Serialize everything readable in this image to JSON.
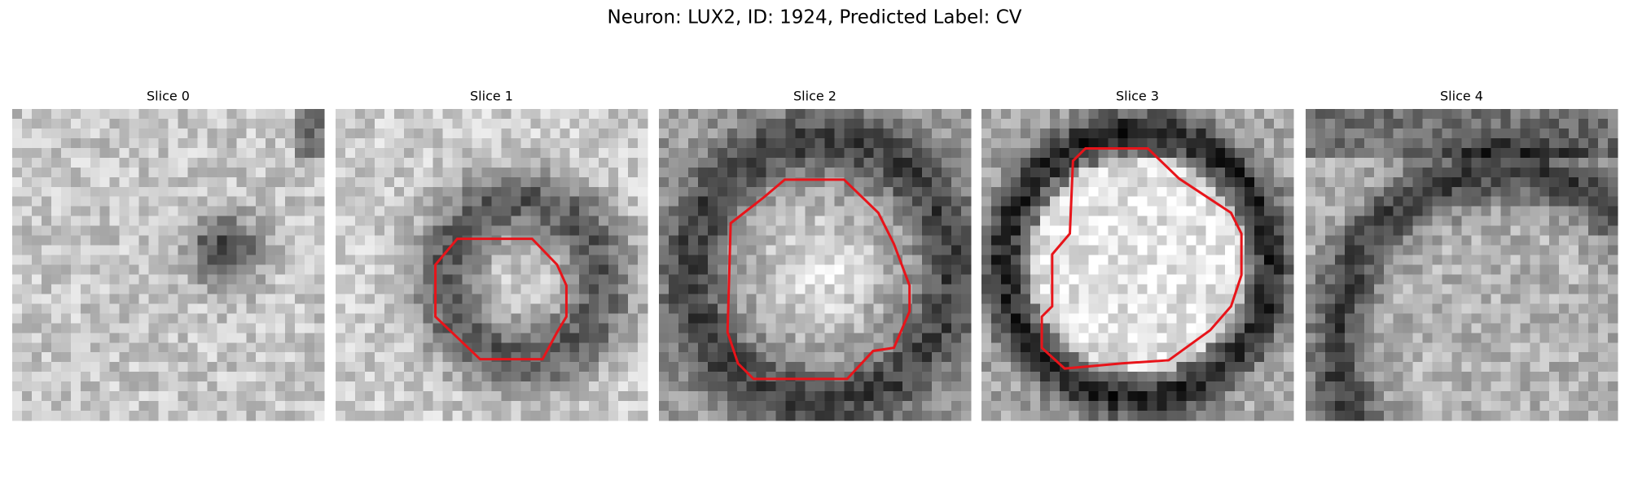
{
  "title": "Neuron: LUX2, ID: 1924, Predicted Label: CV",
  "panels": [
    {
      "title": "Slice 0"
    },
    {
      "title": "Slice 1"
    },
    {
      "title": "Slice 2"
    },
    {
      "title": "Slice 3"
    },
    {
      "title": "Slice 4"
    }
  ]
}
